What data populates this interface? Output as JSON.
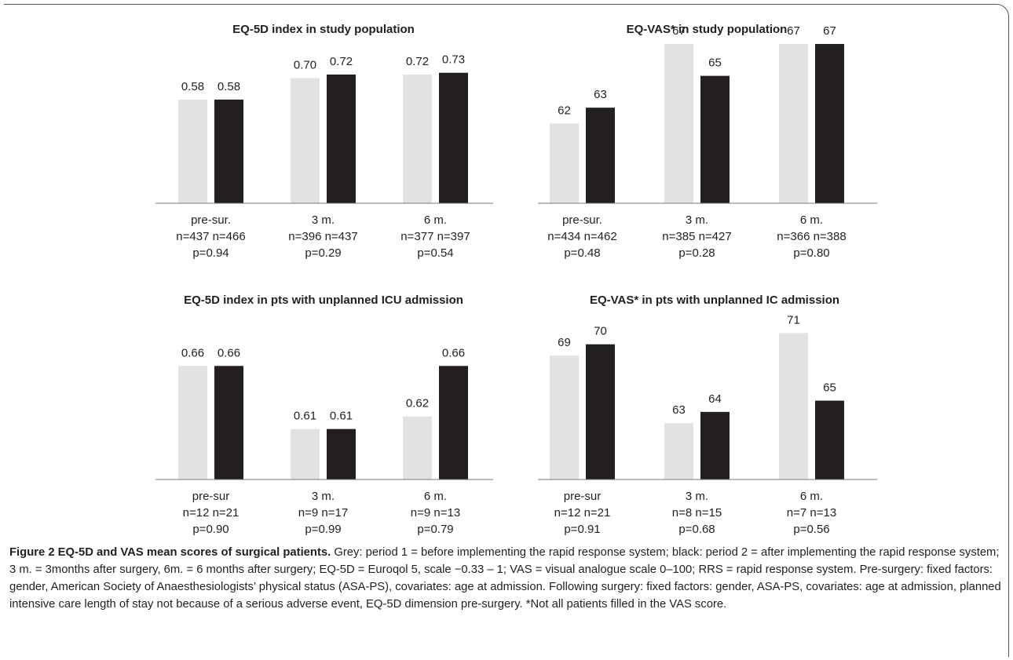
{
  "colors": {
    "period1": "#e1e2e3",
    "period2": "#231f20",
    "axis": "#7a7a7a"
  },
  "chart_data": [
    {
      "type": "bar",
      "title": "EQ-5D index in study population",
      "categories": [
        "pre-sur.",
        "3 m.",
        "6 m."
      ],
      "series": [
        {
          "values": [
            0.58,
            0.7,
            0.72
          ],
          "labels": [
            "0.58",
            "0.70",
            "0.72"
          ]
        },
        {
          "values": [
            0.58,
            0.72,
            0.73
          ],
          "labels": [
            "0.58",
            "0.72",
            "0.73"
          ]
        }
      ],
      "n_labels": [
        "n=437 n=466",
        "n=396 n=437",
        "n=377 n=397"
      ],
      "p_labels": [
        "p=0.94",
        "p=0.29",
        "p=0.54"
      ],
      "ylim": [
        0,
        0.9
      ],
      "grid": false
    },
    {
      "type": "bar",
      "title": "EQ-VAS* in study population",
      "categories": [
        "pre-sur.",
        "3 m.",
        "6 m."
      ],
      "series": [
        {
          "values": [
            62,
            67,
            67
          ],
          "labels": [
            "62",
            "67",
            "67"
          ]
        },
        {
          "values": [
            63,
            65,
            67
          ],
          "labels": [
            "63",
            "65",
            "67"
          ]
        }
      ],
      "n_labels": [
        "n=434 n=462",
        "n=385 n=427",
        "n=366 n=388"
      ],
      "p_labels": [
        "p=0.48",
        "p=0.28",
        "p=0.80"
      ],
      "ylim": [
        57,
        67.1
      ],
      "grid": false
    },
    {
      "type": "bar",
      "title": "EQ-5D index in pts with unplanned ICU admission",
      "categories": [
        "pre-sur",
        "3 m.",
        "6 m."
      ],
      "series": [
        {
          "values": [
            0.66,
            0.61,
            0.62
          ],
          "labels": [
            "0.66",
            "0.61",
            "0.62"
          ]
        },
        {
          "values": [
            0.66,
            0.61,
            0.66
          ],
          "labels": [
            "0.66",
            "0.61",
            "0.66"
          ]
        }
      ],
      "n_labels": [
        "n=12 n=21",
        "n=9 n=17",
        "n=9 n=13"
      ],
      "p_labels": [
        "p=0.90",
        "p=0.99",
        "p=0.79"
      ],
      "ylim": [
        0.57,
        0.695
      ],
      "grid": false
    },
    {
      "type": "bar",
      "title": "EQ-VAS* in pts with unplanned IC admission",
      "categories": [
        "pre-sur",
        "3 m.",
        "6 m."
      ],
      "series": [
        {
          "values": [
            69,
            63,
            71
          ],
          "labels": [
            "69",
            "63",
            "71"
          ]
        },
        {
          "values": [
            70,
            64,
            65
          ],
          "labels": [
            "70",
            "64",
            "65"
          ]
        }
      ],
      "n_labels": [
        "n=12 n=21",
        "n=8 n=15",
        "n=7 n=13"
      ],
      "p_labels": [
        "p=0.91",
        "p=0.68",
        "p=0.56"
      ],
      "ylim": [
        58,
        72
      ],
      "grid": false
    }
  ],
  "caption": {
    "bold": "Figure 2 EQ-5D and VAS mean scores of surgical patients.",
    "text": " Grey: period 1 = before implementing the rapid response system; black: period 2 = after implementing the rapid response system; 3 m. = 3months after surgery, 6m. = 6 months after surgery; EQ-5D = Euroqol 5, scale −0.33 – 1; VAS = visual analogue scale 0–100; RRS = rapid response system. Pre-surgery: fixed factors: gender, American Society of Anaesthesiologists’ physical status (ASA-PS), covariates: age at admission. Following surgery: fixed factors: gender, ASA-PS, covariates: age at admission, planned intensive care length of stay not because of a serious adverse event, EQ-5D dimension pre-surgery. *Not all patients filled in the VAS score."
  }
}
